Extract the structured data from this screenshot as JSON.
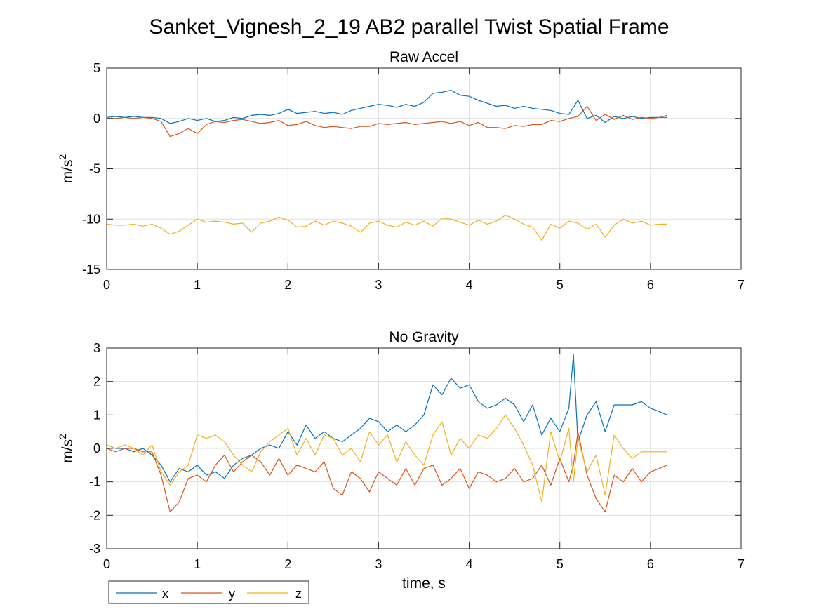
{
  "title": "Sanket_Vignesh_2_19 AB2 parallel Twist Spatial Frame",
  "colors": {
    "x": "#0072BD",
    "y": "#D95319",
    "z": "#EDB120"
  },
  "legend": {
    "entries": [
      "x",
      "y",
      "z"
    ],
    "placement": "bottom-left outside"
  },
  "chart_data": [
    {
      "type": "line",
      "title": "Raw Accel",
      "xlabel": "",
      "ylabel": "m/s",
      "ylabel_sup": "2",
      "xlim": [
        0,
        7
      ],
      "ylim": [
        -15,
        5
      ],
      "xticks": [
        0,
        1,
        2,
        3,
        4,
        5,
        6,
        7
      ],
      "yticks": [
        5,
        0,
        -5,
        -10,
        -15
      ],
      "grid": true,
      "x": [
        0.0,
        0.1,
        0.2,
        0.3,
        0.4,
        0.5,
        0.6,
        0.7,
        0.8,
        0.9,
        1.0,
        1.1,
        1.2,
        1.3,
        1.4,
        1.5,
        1.6,
        1.7,
        1.8,
        1.9,
        2.0,
        2.1,
        2.2,
        2.3,
        2.4,
        2.5,
        2.6,
        2.7,
        2.8,
        2.9,
        3.0,
        3.1,
        3.2,
        3.3,
        3.4,
        3.5,
        3.6,
        3.7,
        3.8,
        3.9,
        4.0,
        4.1,
        4.2,
        4.3,
        4.4,
        4.5,
        4.6,
        4.7,
        4.8,
        4.9,
        5.0,
        5.1,
        5.2,
        5.3,
        5.4,
        5.5,
        5.6,
        5.7,
        5.8,
        5.9,
        6.0,
        6.1,
        6.18
      ],
      "series": [
        {
          "name": "x",
          "values": [
            0.1,
            0.2,
            0.1,
            0.2,
            0.1,
            0.1,
            0.0,
            -0.5,
            -0.3,
            0.0,
            -0.2,
            0.0,
            -0.3,
            -0.2,
            0.1,
            0.0,
            0.3,
            0.4,
            0.3,
            0.5,
            0.9,
            0.5,
            0.6,
            0.7,
            0.5,
            0.6,
            0.4,
            0.8,
            1.0,
            1.2,
            1.4,
            1.3,
            1.1,
            1.4,
            1.2,
            1.6,
            2.5,
            2.6,
            2.8,
            2.3,
            2.2,
            1.8,
            1.5,
            1.2,
            1.3,
            1.0,
            1.2,
            1.0,
            0.9,
            0.8,
            0.5,
            0.4,
            1.8,
            0.0,
            0.3,
            -0.4,
            0.2,
            0.0,
            0.2,
            0.0,
            0.1,
            0.1,
            0.1
          ]
        },
        {
          "name": "y",
          "values": [
            0.0,
            0.0,
            0.1,
            0.0,
            0.1,
            0.0,
            -0.3,
            -1.8,
            -1.5,
            -1.0,
            -1.5,
            -0.6,
            -0.3,
            -0.4,
            -0.2,
            -0.1,
            -0.3,
            -0.5,
            -0.4,
            -0.2,
            -0.7,
            -0.6,
            -0.3,
            -0.7,
            -0.9,
            -0.8,
            -0.9,
            -1.0,
            -0.8,
            -0.8,
            -0.5,
            -0.6,
            -0.5,
            -0.4,
            -0.6,
            -0.5,
            -0.4,
            -0.3,
            -0.5,
            -0.3,
            -0.7,
            -0.4,
            -0.9,
            -0.9,
            -1.0,
            -0.7,
            -0.8,
            -0.6,
            -0.6,
            -0.2,
            -0.3,
            0.0,
            0.2,
            1.2,
            -0.2,
            0.4,
            -0.1,
            0.3,
            -0.1,
            0.1,
            0.0,
            0.1,
            0.3
          ]
        },
        {
          "name": "z",
          "values": [
            -10.5,
            -10.6,
            -10.6,
            -10.5,
            -10.7,
            -10.5,
            -10.9,
            -11.5,
            -11.2,
            -10.6,
            -10.0,
            -10.3,
            -10.2,
            -10.3,
            -10.5,
            -10.4,
            -11.3,
            -10.4,
            -10.2,
            -9.8,
            -10.1,
            -10.8,
            -10.7,
            -10.2,
            -10.6,
            -10.2,
            -10.4,
            -10.7,
            -11.3,
            -10.4,
            -10.2,
            -10.6,
            -10.8,
            -10.3,
            -10.6,
            -10.2,
            -10.7,
            -9.9,
            -10.0,
            -10.3,
            -10.6,
            -10.1,
            -10.5,
            -10.2,
            -9.6,
            -10.0,
            -10.5,
            -10.8,
            -12.1,
            -10.5,
            -10.9,
            -10.2,
            -10.4,
            -11.0,
            -10.5,
            -11.8,
            -10.6,
            -10.0,
            -10.4,
            -10.2,
            -10.6,
            -10.5,
            -10.5
          ]
        }
      ]
    },
    {
      "type": "line",
      "title": "No Gravity",
      "xlabel": "time, s",
      "ylabel": "m/s",
      "ylabel_sup": "2",
      "xlim": [
        0,
        7
      ],
      "ylim": [
        -3,
        3
      ],
      "xticks": [
        0,
        1,
        2,
        3,
        4,
        5,
        6,
        7
      ],
      "yticks": [
        3,
        2,
        1,
        0,
        -1,
        -2,
        -3
      ],
      "grid": true,
      "x": [
        0.0,
        0.1,
        0.2,
        0.3,
        0.4,
        0.5,
        0.6,
        0.7,
        0.8,
        0.9,
        1.0,
        1.1,
        1.2,
        1.3,
        1.4,
        1.5,
        1.6,
        1.7,
        1.8,
        1.9,
        2.0,
        2.1,
        2.2,
        2.3,
        2.4,
        2.5,
        2.6,
        2.7,
        2.8,
        2.9,
        3.0,
        3.1,
        3.2,
        3.3,
        3.4,
        3.5,
        3.6,
        3.7,
        3.8,
        3.9,
        4.0,
        4.1,
        4.2,
        4.3,
        4.4,
        4.5,
        4.6,
        4.7,
        4.8,
        4.9,
        5.0,
        5.1,
        5.15,
        5.2,
        5.3,
        5.4,
        5.5,
        5.6,
        5.7,
        5.8,
        5.9,
        6.0,
        6.1,
        6.18
      ],
      "series": [
        {
          "name": "x",
          "values": [
            0.1,
            0.0,
            0.0,
            -0.1,
            0.0,
            -0.2,
            -0.5,
            -1.0,
            -0.6,
            -0.7,
            -0.5,
            -0.8,
            -0.7,
            -0.9,
            -0.5,
            -0.3,
            -0.2,
            0.0,
            0.1,
            0.0,
            0.5,
            0.1,
            0.7,
            0.3,
            0.5,
            0.3,
            0.2,
            0.4,
            0.6,
            0.9,
            0.8,
            0.5,
            0.7,
            0.5,
            0.7,
            1.0,
            1.9,
            1.6,
            2.1,
            1.8,
            1.9,
            1.4,
            1.2,
            1.3,
            1.5,
            1.3,
            0.8,
            1.3,
            0.4,
            0.9,
            0.5,
            1.2,
            2.8,
            0.2,
            1.0,
            1.4,
            0.5,
            1.3,
            1.3,
            1.3,
            1.4,
            1.2,
            1.1,
            1.0
          ]
        },
        {
          "name": "y",
          "values": [
            0.0,
            -0.1,
            0.0,
            0.0,
            -0.1,
            -0.1,
            -0.8,
            -1.9,
            -1.6,
            -0.9,
            -0.8,
            -1.0,
            -0.5,
            -0.2,
            -0.7,
            -0.4,
            -0.2,
            -0.4,
            -0.8,
            -0.3,
            -0.8,
            -0.5,
            -0.6,
            -0.7,
            -0.4,
            -1.2,
            -1.4,
            -0.7,
            -0.9,
            -1.3,
            -0.7,
            -0.9,
            -1.1,
            -0.6,
            -1.1,
            -0.6,
            -0.5,
            -1.1,
            -0.9,
            -0.6,
            -1.2,
            -0.7,
            -0.8,
            -1.0,
            -0.9,
            -0.6,
            -1.0,
            -0.9,
            -0.5,
            -1.1,
            -0.3,
            -1.0,
            -0.5,
            0.5,
            -0.8,
            -1.5,
            -1.9,
            -0.8,
            -1.0,
            -0.6,
            -1.0,
            -0.7,
            -0.6,
            -0.5
          ]
        },
        {
          "name": "z",
          "values": [
            0.1,
            0.0,
            0.1,
            0.0,
            -0.2,
            0.1,
            -0.7,
            -1.1,
            -0.7,
            -0.5,
            0.4,
            0.3,
            0.4,
            0.2,
            -0.2,
            -0.5,
            -0.7,
            -0.1,
            0.2,
            0.4,
            0.6,
            -0.2,
            0.3,
            -0.2,
            0.4,
            0.3,
            -0.2,
            0.0,
            -0.4,
            0.5,
            0.1,
            0.4,
            -0.4,
            0.2,
            -0.2,
            -0.5,
            0.4,
            0.8,
            -0.2,
            0.3,
            0.0,
            0.4,
            0.3,
            0.6,
            1.0,
            0.6,
            0.1,
            -0.5,
            -1.6,
            0.5,
            -0.4,
            0.6,
            -1.0,
            0.3,
            -0.7,
            -0.2,
            -1.4,
            0.4,
            0.0,
            -0.3,
            -0.1,
            -0.1,
            -0.1,
            -0.1
          ]
        }
      ]
    }
  ]
}
